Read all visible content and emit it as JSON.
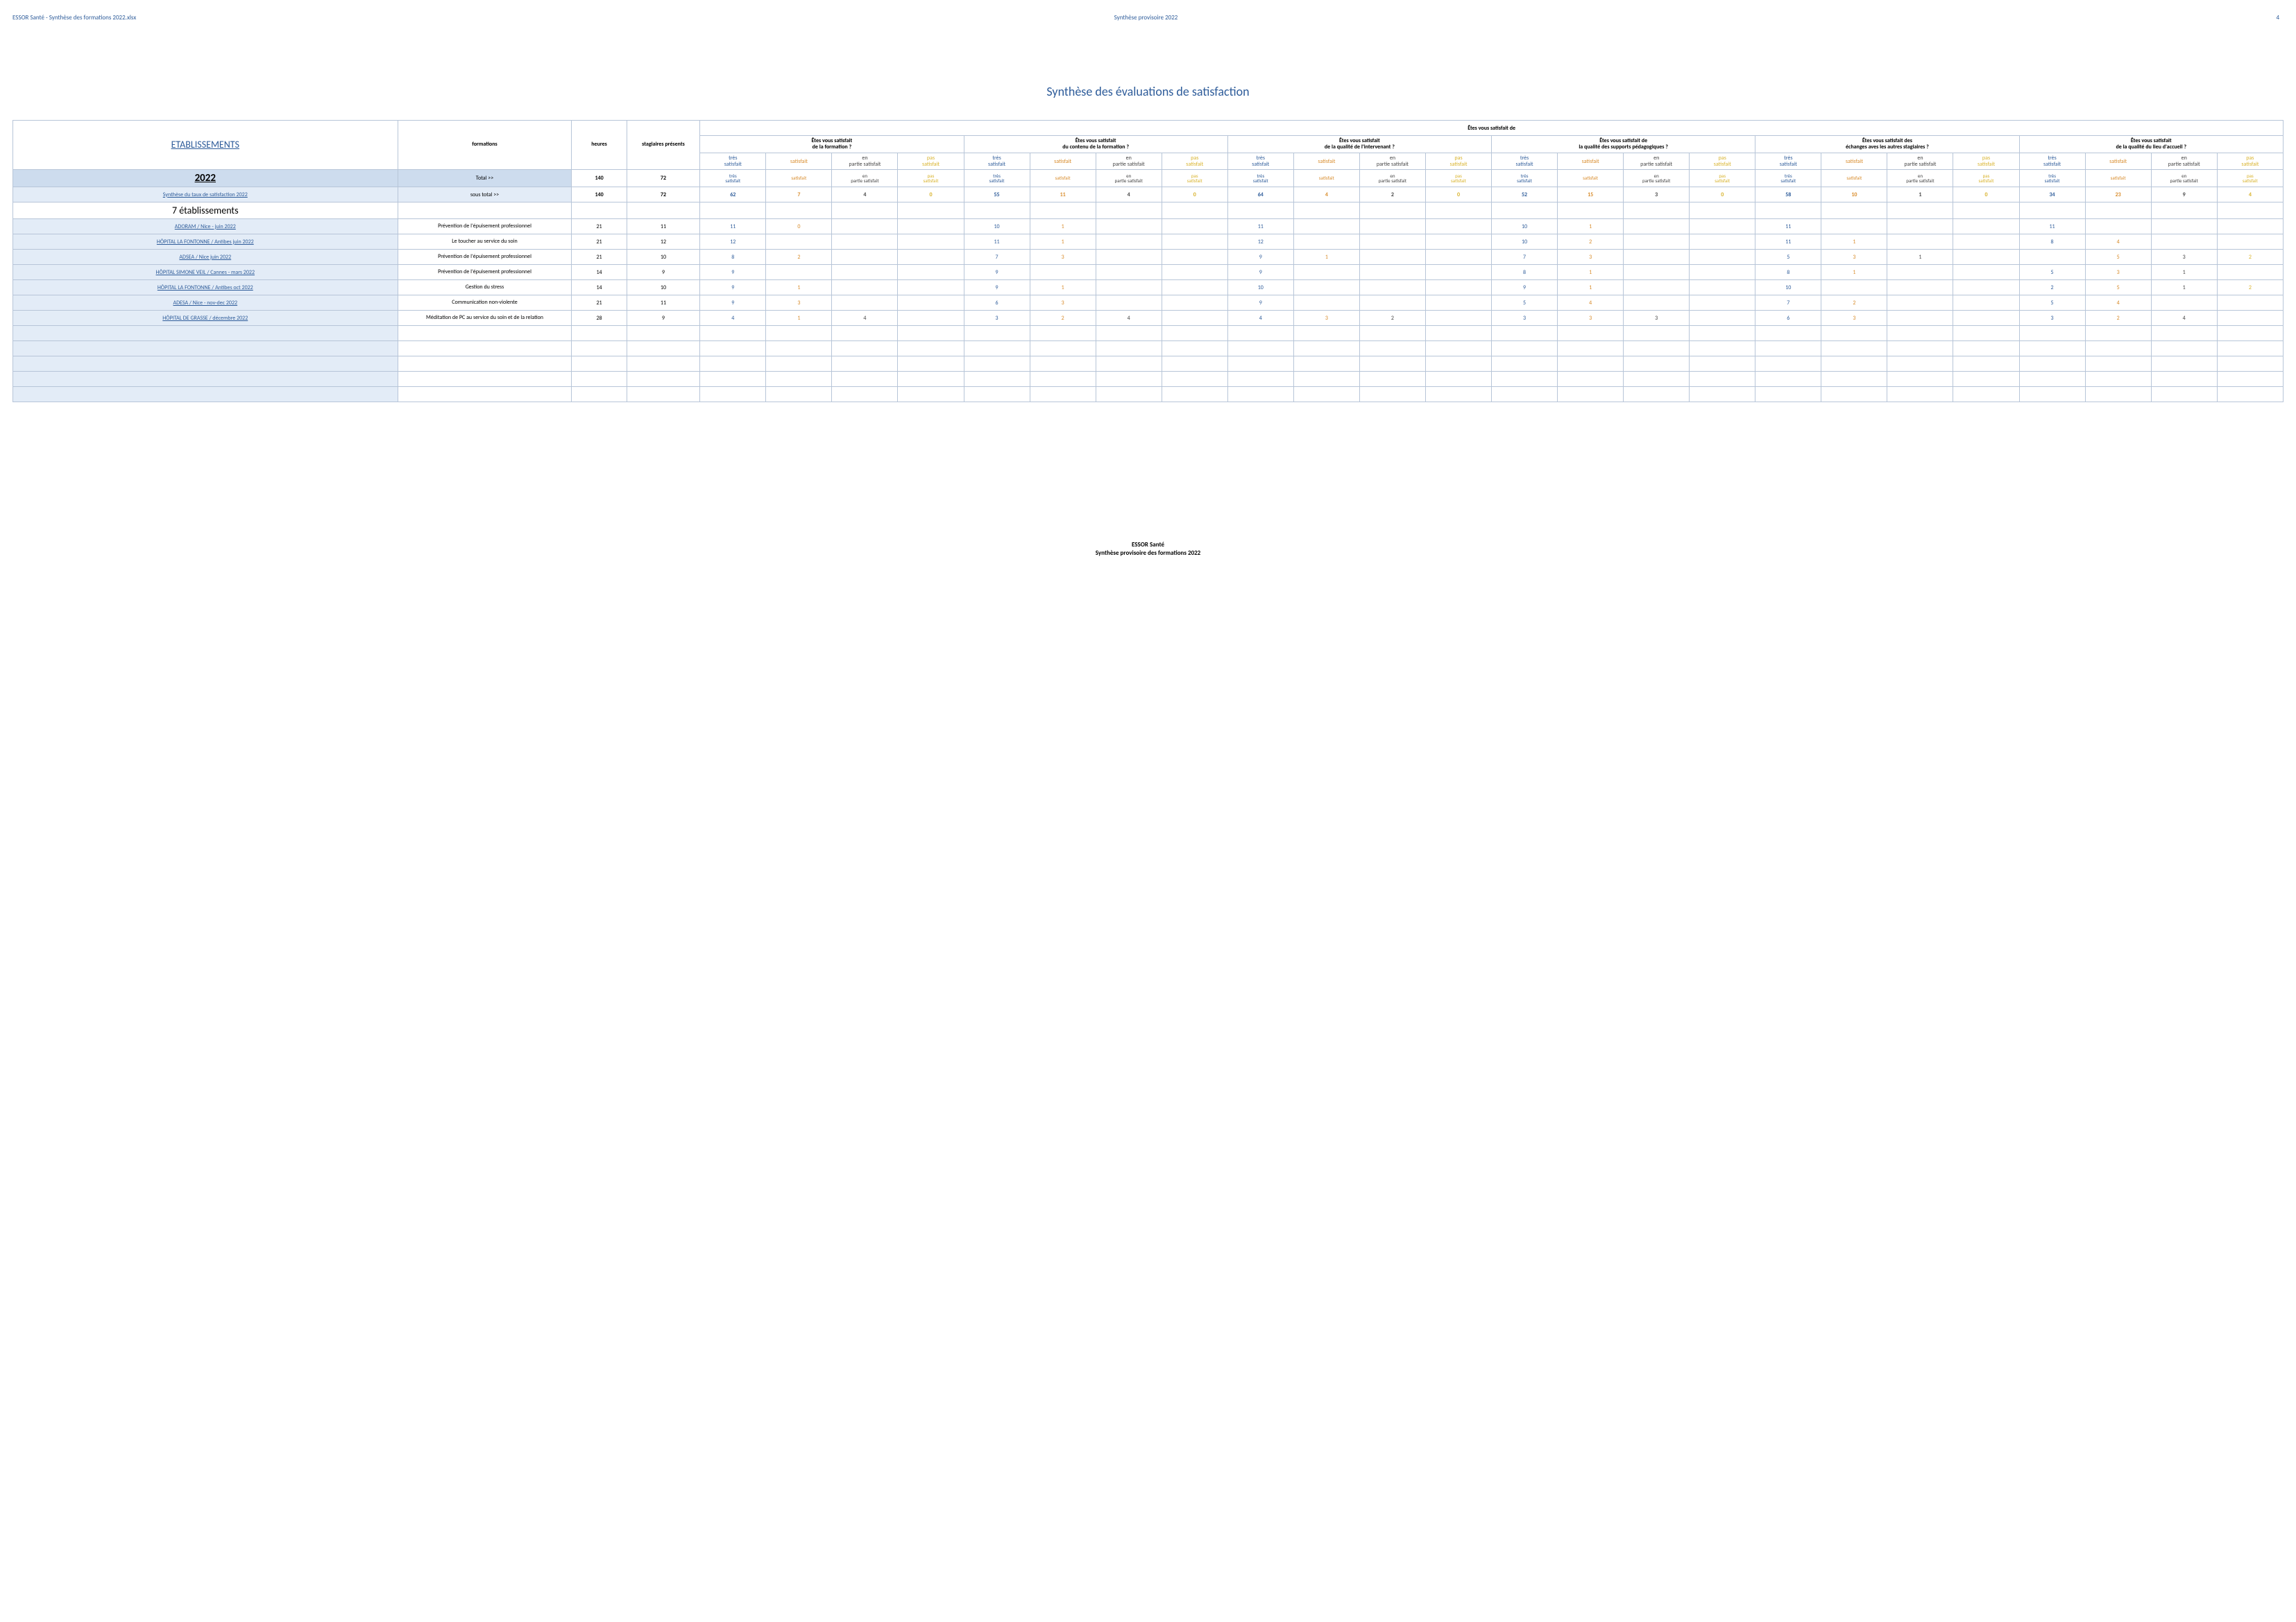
{
  "header": {
    "left": "ESSOR Santé - Synthèse des formations 2022.xlsx",
    "center": "Synthèse provisoire 2022",
    "page_number": "4"
  },
  "title": "Synthèse des évaluations de satisfaction",
  "col_headers": {
    "est": "ETABLISSEMENTS",
    "form": "formations",
    "heures": "heures",
    "stag": "stagiaires présents",
    "top_group": "Êtes vous satisfait de"
  },
  "questions": [
    "Êtes vous satisfait\nde la formation ?",
    "Êtes vous satisfait\ndu contenu de la formation ?",
    "Êtes vous satisfait\nde la qualité de l'intervenant ?",
    "Êtes vous satisfait de\nla qualité des supports pédagogiques ?",
    "Êtes vous satisfait des\néchanges aves les autres stagiaires ?",
    "Êtes vous satisfait\nde la qualité du lieu d'accueil ?"
  ],
  "rating_labels": {
    "ts": "très satisfait",
    "s": "satisfait",
    "ep": "en partie satisfait",
    "ps": "pas satisfait"
  },
  "year_row": {
    "label": "2022",
    "total_label": "Total >>",
    "heures": "140",
    "stag": "72"
  },
  "synth_row": {
    "label": "Synthèse du taux de satisfaction 2022",
    "sous_total_label": "sous total >>",
    "heures": "140",
    "stag": "72",
    "values": [
      [
        "62",
        "7",
        "4",
        "0"
      ],
      [
        "55",
        "11",
        "4",
        "0"
      ],
      [
        "64",
        "4",
        "2",
        "0"
      ],
      [
        "52",
        "15",
        "3",
        "0"
      ],
      [
        "58",
        "10",
        "1",
        "0"
      ],
      [
        "34",
        "23",
        "9",
        "4"
      ]
    ]
  },
  "seven_label": "7 établissements",
  "rows": [
    {
      "est": "ADORAM / Nice - juin 2022",
      "form": "Prévention de l'épuisement professionnel",
      "heures": "21",
      "stag": "11",
      "values": [
        [
          "11",
          "0",
          "",
          ""
        ],
        [
          "10",
          "1",
          "",
          ""
        ],
        [
          "11",
          "",
          "",
          ""
        ],
        [
          "10",
          "1",
          "",
          ""
        ],
        [
          "11",
          "",
          "",
          ""
        ],
        [
          "11",
          "",
          "",
          ""
        ]
      ]
    },
    {
      "est": "HÔPITAL LA FONTONNE / Antibes juin 2022",
      "form": "Le toucher au service du soin",
      "heures": "21",
      "stag": "12",
      "values": [
        [
          "12",
          "",
          "",
          ""
        ],
        [
          "11",
          "1",
          "",
          ""
        ],
        [
          "12",
          "",
          "",
          ""
        ],
        [
          "10",
          "2",
          "",
          ""
        ],
        [
          "11",
          "1",
          "",
          ""
        ],
        [
          "8",
          "4",
          "",
          ""
        ]
      ]
    },
    {
      "est": "ADSEA / Nice juin 2022",
      "form": "Prévention de l'épuisement professionnel",
      "heures": "21",
      "stag": "10",
      "values": [
        [
          "8",
          "2",
          "",
          ""
        ],
        [
          "7",
          "3",
          "",
          ""
        ],
        [
          "9",
          "1",
          "",
          ""
        ],
        [
          "7",
          "3",
          "",
          ""
        ],
        [
          "5",
          "3",
          "1",
          ""
        ],
        [
          "",
          "5",
          "3",
          "2"
        ]
      ]
    },
    {
      "est": "HÔPITAL SIMONE VEIL / Cannes - mars 2022",
      "form": "Prévention de l'épuisement professionnel",
      "heures": "14",
      "stag": "9",
      "values": [
        [
          "9",
          "",
          "",
          ""
        ],
        [
          "9",
          "",
          "",
          ""
        ],
        [
          "9",
          "",
          "",
          ""
        ],
        [
          "8",
          "1",
          "",
          ""
        ],
        [
          "8",
          "1",
          "",
          ""
        ],
        [
          "5",
          "3",
          "1",
          ""
        ]
      ]
    },
    {
      "est": "HÔPITAL LA FONTONNE / Antibes oct 2022",
      "form": "Gestion du stress",
      "heures": "14",
      "stag": "10",
      "values": [
        [
          "9",
          "1",
          "",
          ""
        ],
        [
          "9",
          "1",
          "",
          ""
        ],
        [
          "10",
          "",
          "",
          ""
        ],
        [
          "9",
          "1",
          "",
          ""
        ],
        [
          "10",
          "",
          "",
          ""
        ],
        [
          "2",
          "5",
          "1",
          "2"
        ]
      ]
    },
    {
      "est": "ADESA / Nice - nov-dec 2022",
      "form": "Communication non-violente",
      "heures": "21",
      "stag": "11",
      "values": [
        [
          "9",
          "3",
          "",
          ""
        ],
        [
          "6",
          "3",
          "",
          ""
        ],
        [
          "9",
          "",
          "",
          ""
        ],
        [
          "5",
          "4",
          "",
          ""
        ],
        [
          "7",
          "2",
          "",
          ""
        ],
        [
          "5",
          "4",
          "",
          ""
        ]
      ]
    },
    {
      "est": "HÔPITAL DE GRASSE / décembre 2022",
      "form": "Méditation de PC au service du soin et de la relation",
      "heures": "28",
      "stag": "9",
      "values": [
        [
          "4",
          "1",
          "4",
          ""
        ],
        [
          "3",
          "2",
          "4",
          ""
        ],
        [
          "4",
          "3",
          "2",
          ""
        ],
        [
          "3",
          "3",
          "3",
          ""
        ],
        [
          "6",
          "3",
          "",
          ""
        ],
        [
          "3",
          "2",
          "4",
          ""
        ]
      ]
    }
  ],
  "empty_rows": 5,
  "footer": {
    "line1": "ESSOR Santé",
    "line2": "Synthèse provisoire des formations 2022"
  },
  "colors": {
    "ts": "#2e5c9a",
    "s": "#d88b2a",
    "ep": "#444444",
    "ps": "#d8b22a"
  }
}
